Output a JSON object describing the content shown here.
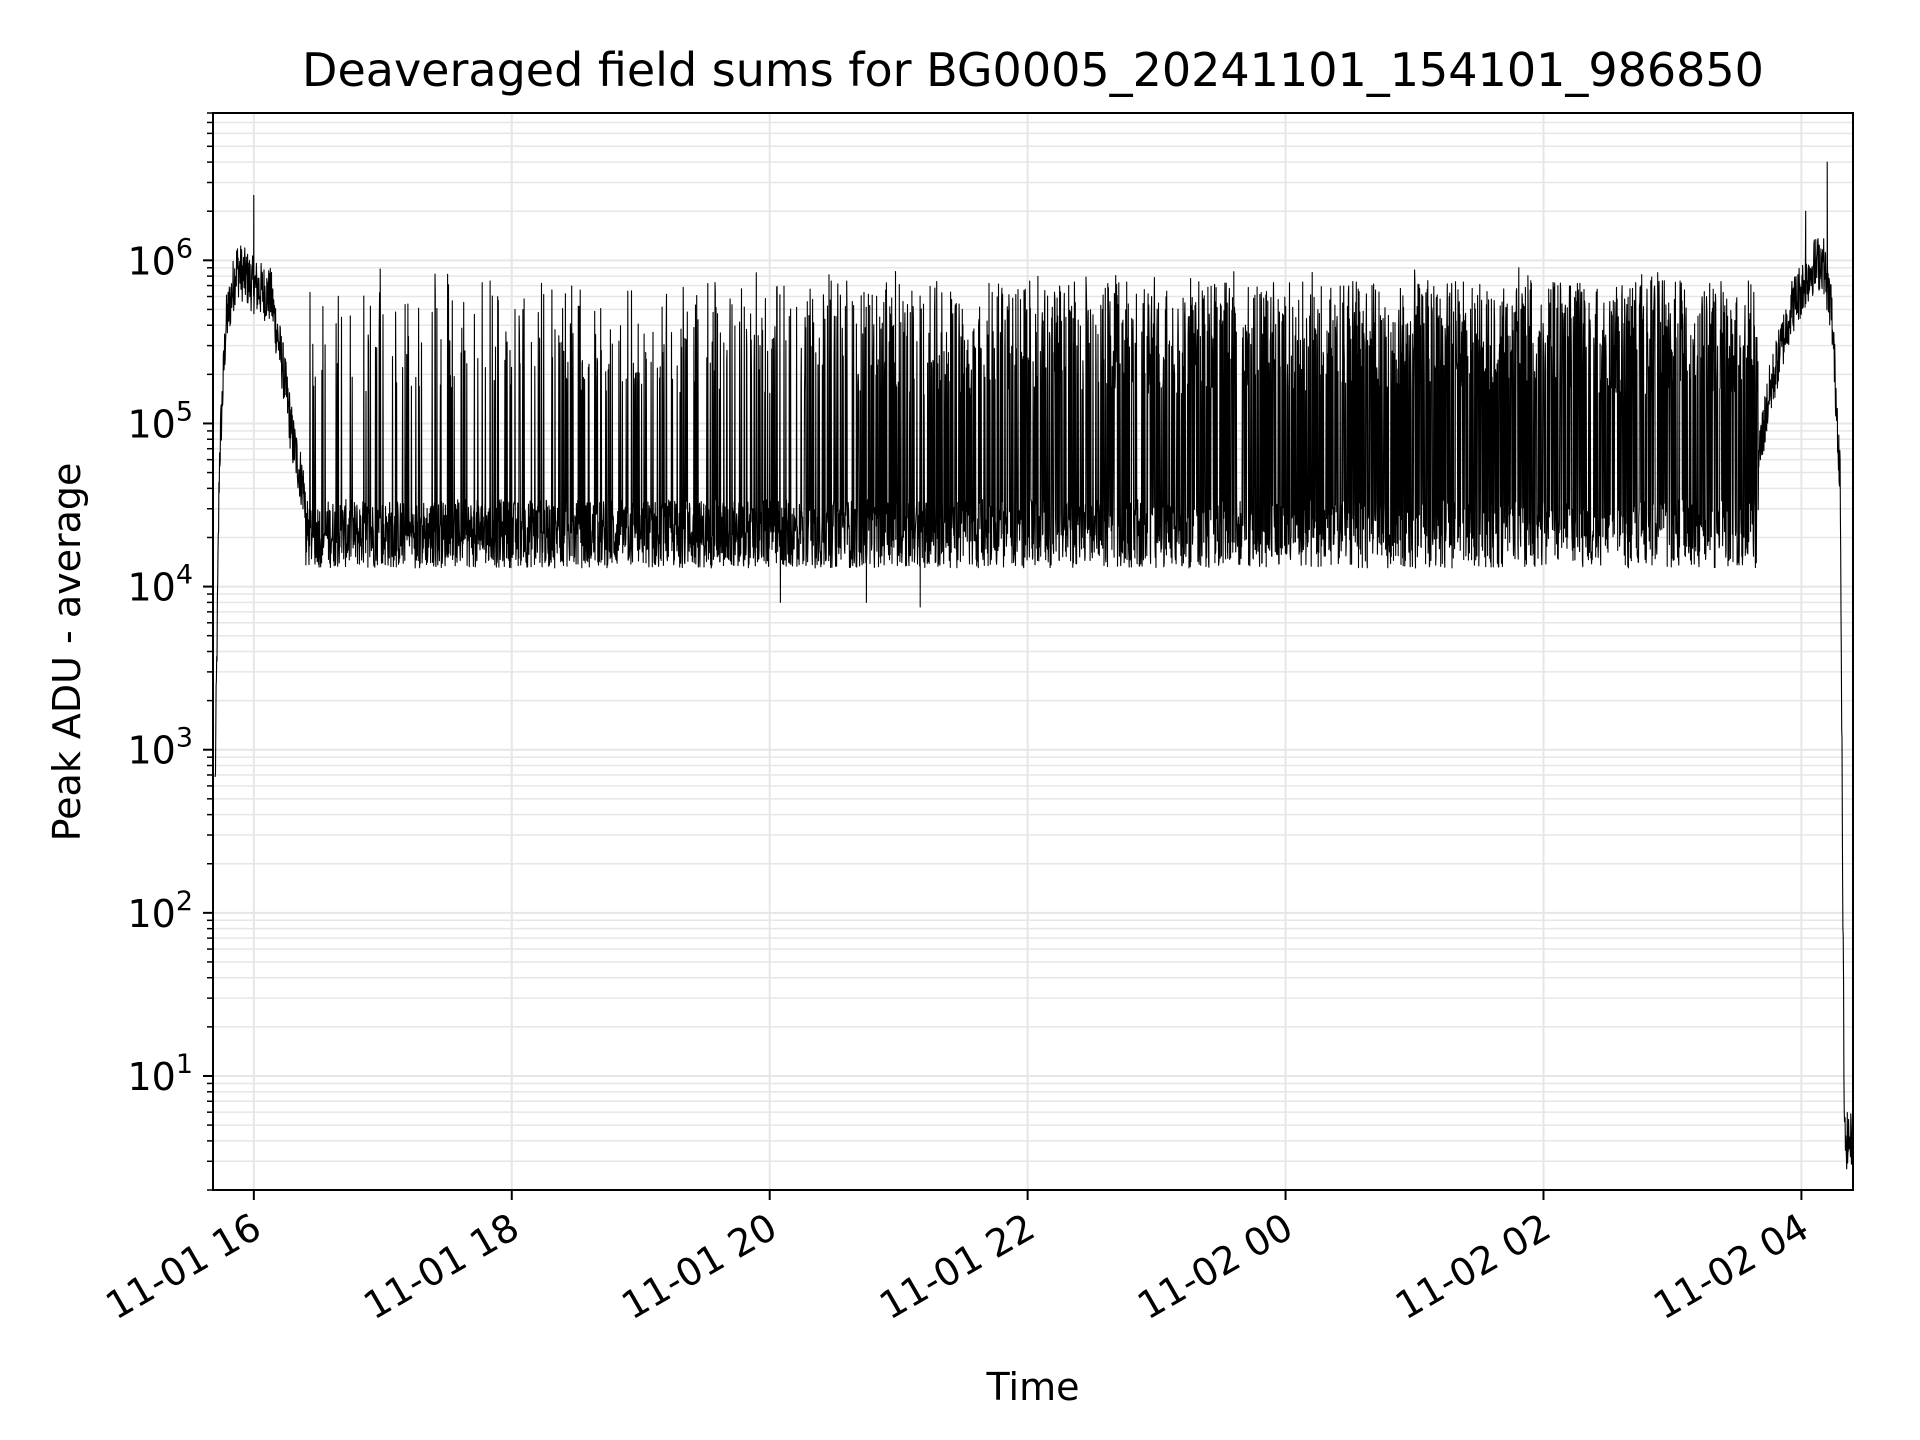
{
  "chart_data": {
    "type": "line",
    "title": "Deaveraged field sums for BG0005_20241101_154101_986850",
    "xlabel": "Time",
    "ylabel": "Peak ADU - average",
    "yscale": "log",
    "ylim": [
      2,
      8000000
    ],
    "xlim": [
      "2024-11-01 15:41",
      "2024-11-02 04:24"
    ],
    "grid": true,
    "grid_color": "#e6e6e6",
    "line_color": "#000000",
    "x_ticks": [
      {
        "value": "2024-11-01 16:00",
        "label": "11-01 16"
      },
      {
        "value": "2024-11-01 18:00",
        "label": "11-01 18"
      },
      {
        "value": "2024-11-01 20:00",
        "label": "11-01 20"
      },
      {
        "value": "2024-11-01 22:00",
        "label": "11-01 22"
      },
      {
        "value": "2024-11-02 00:00",
        "label": "11-02 00"
      },
      {
        "value": "2024-11-02 02:00",
        "label": "11-02 02"
      },
      {
        "value": "2024-11-02 04:00",
        "label": "11-02 04"
      }
    ],
    "y_ticks": [
      {
        "value": 10,
        "base": "10",
        "exp": "1"
      },
      {
        "value": 100,
        "base": "10",
        "exp": "2"
      },
      {
        "value": 1000,
        "base": "10",
        "exp": "3"
      },
      {
        "value": 10000,
        "base": "10",
        "exp": "4"
      },
      {
        "value": 100000,
        "base": "10",
        "exp": "5"
      },
      {
        "value": 1000000,
        "base": "10",
        "exp": "6"
      }
    ],
    "series": [
      {
        "envelope": {
          "baseline": [
            [
              "2024-11-01 15:42",
              600
            ],
            [
              "2024-11-01 15:44",
              60000
            ],
            [
              "2024-11-01 15:47",
              400000
            ],
            [
              "2024-11-01 15:52",
              900000
            ],
            [
              "2024-11-01 16:00",
              700000
            ],
            [
              "2024-11-01 16:08",
              600000
            ],
            [
              "2024-11-01 16:14",
              200000
            ],
            [
              "2024-11-01 16:18",
              80000
            ],
            [
              "2024-11-01 16:24",
              35000
            ],
            [
              "2024-11-01 16:35",
              25000
            ],
            [
              "2024-11-01 17:00",
              22000
            ],
            [
              "2024-11-01 18:00",
              21000
            ],
            [
              "2024-11-01 20:00",
              20000
            ],
            [
              "2024-11-01 22:00",
              21000
            ],
            [
              "2024-11-02 00:00",
              22000
            ],
            [
              "2024-11-02 02:00",
              22000
            ],
            [
              "2024-11-02 03:20",
              22000
            ],
            [
              "2024-11-02 03:35",
              25000
            ],
            [
              "2024-11-02 03:45",
              150000
            ],
            [
              "2024-11-02 03:55",
              500000
            ],
            [
              "2024-11-02 04:05",
              900000
            ],
            [
              "2024-11-02 04:10",
              1000000
            ],
            [
              "2024-11-02 04:14",
              500000
            ],
            [
              "2024-11-02 04:18",
              50000
            ],
            [
              "2024-11-02 04:20",
              4
            ],
            [
              "2024-11-02 04:24",
              4
            ]
          ],
          "peak_level": 750000,
          "trough_level": 13000
        },
        "notable_points": [
          {
            "x": "2024-11-01 16:00",
            "y": 2500000
          },
          {
            "x": "2024-11-01 20:05",
            "y": 8000
          },
          {
            "x": "2024-11-01 20:45",
            "y": 8000
          },
          {
            "x": "2024-11-01 21:10",
            "y": 7500
          },
          {
            "x": "2024-11-02 04:02",
            "y": 2000000
          },
          {
            "x": "2024-11-02 04:12",
            "y": 4000000
          }
        ]
      }
    ]
  }
}
